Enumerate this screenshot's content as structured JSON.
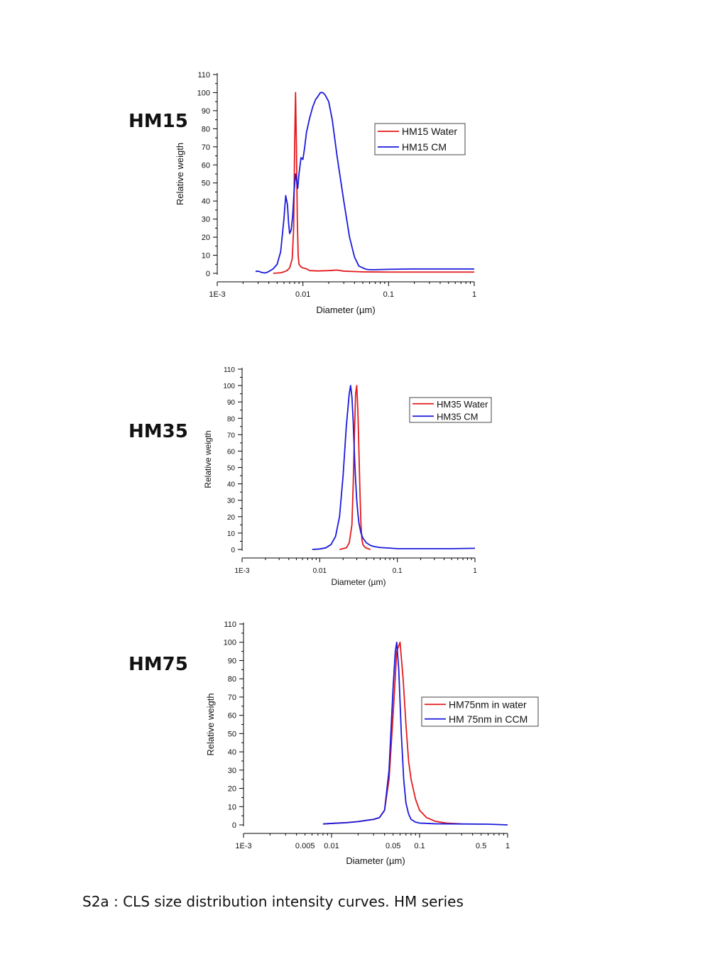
{
  "caption": "S2a : CLS size distribution intensity curves. HM series",
  "panel_labels": [
    "HM15",
    "HM35",
    "HM75"
  ],
  "colors": {
    "water": "#e31a1c",
    "cm": "#1a1adb"
  },
  "chart_data": [
    {
      "type": "line",
      "title": "",
      "xlabel": "Diameter (µm)",
      "ylabel": "Relative weigth",
      "xscale": "log",
      "xlim": [
        0.001,
        1
      ],
      "ylim": [
        0,
        110
      ],
      "xticks": [
        0.001,
        0.01,
        0.1,
        1
      ],
      "xticklabels": [
        "1E-3",
        "0.01",
        "0.1",
        "1"
      ],
      "yticks": [
        0,
        10,
        20,
        30,
        40,
        50,
        60,
        70,
        80,
        90,
        100,
        110
      ],
      "legend": "top-right",
      "series": [
        {
          "name": "HM15 Water",
          "color": "#e31a1c",
          "x": [
            0.0045,
            0.0055,
            0.006,
            0.0065,
            0.007,
            0.0075,
            0.0078,
            0.008,
            0.0082,
            0.0084,
            0.0086,
            0.0088,
            0.009,
            0.0095,
            0.01,
            0.011,
            0.012,
            0.015,
            0.02,
            0.025,
            0.03,
            0.05,
            0.1,
            0.3,
            1
          ],
          "y": [
            0,
            0.3,
            0.8,
            1.5,
            3,
            8,
            25,
            70,
            100,
            70,
            30,
            10,
            5,
            3.5,
            3,
            2.5,
            1.5,
            1.3,
            1.5,
            1.8,
            1.2,
            0.8,
            0.7,
            0.7,
            0.7
          ]
        },
        {
          "name": "HM15 CM",
          "color": "#1a1adb",
          "x": [
            0.0028,
            0.003,
            0.0033,
            0.0036,
            0.0038,
            0.004,
            0.0045,
            0.005,
            0.0055,
            0.006,
            0.0063,
            0.0066,
            0.0068,
            0.007,
            0.0073,
            0.0076,
            0.0079,
            0.0082,
            0.0084,
            0.0087,
            0.009,
            0.0095,
            0.01,
            0.0105,
            0.011,
            0.012,
            0.013,
            0.014,
            0.015,
            0.016,
            0.017,
            0.018,
            0.019,
            0.02,
            0.022,
            0.025,
            0.03,
            0.035,
            0.04,
            0.045,
            0.05,
            0.055,
            0.06,
            0.07,
            0.1,
            0.2,
            0.5,
            1
          ],
          "y": [
            1,
            1.2,
            0.5,
            0.2,
            0.5,
            1,
            2.5,
            5,
            12,
            30,
            43,
            38,
            28,
            22,
            24,
            32,
            46,
            55,
            52,
            47,
            55,
            64,
            63,
            70,
            78,
            86,
            92,
            96,
            98,
            100,
            100,
            99,
            97,
            95,
            85,
            65,
            40,
            20,
            9,
            4,
            3,
            2.2,
            2,
            2,
            2.2,
            2.4,
            2.4,
            2.4
          ]
        }
      ]
    },
    {
      "type": "line",
      "title": "",
      "xlabel": "Diameter (µm)",
      "ylabel": "Relative weigth",
      "xscale": "log",
      "xlim": [
        0.001,
        1
      ],
      "ylim": [
        0,
        110
      ],
      "xticks": [
        0.001,
        0.01,
        0.1,
        1
      ],
      "xticklabels": [
        "1E-3",
        "0.01",
        "0.1",
        "1"
      ],
      "yticks": [
        0,
        10,
        20,
        30,
        40,
        50,
        60,
        70,
        80,
        90,
        100,
        110
      ],
      "legend": "top-right",
      "series": [
        {
          "name": "HM35 Water",
          "color": "#e31a1c",
          "x": [
            0.018,
            0.022,
            0.024,
            0.026,
            0.027,
            0.028,
            0.029,
            0.03,
            0.031,
            0.032,
            0.033,
            0.034,
            0.035,
            0.036,
            0.038,
            0.04,
            0.045
          ],
          "y": [
            0,
            1,
            4,
            15,
            40,
            70,
            95,
            100,
            85,
            60,
            35,
            15,
            6,
            3,
            1.5,
            0.8,
            0
          ]
        },
        {
          "name": "HM35 CM",
          "color": "#1a1adb",
          "x": [
            0.008,
            0.01,
            0.012,
            0.014,
            0.016,
            0.018,
            0.02,
            0.022,
            0.024,
            0.025,
            0.026,
            0.027,
            0.028,
            0.029,
            0.03,
            0.031,
            0.032,
            0.034,
            0.036,
            0.04,
            0.045,
            0.05,
            0.06,
            0.08,
            0.1,
            0.2,
            0.5,
            1
          ],
          "y": [
            0,
            0.3,
            1,
            3,
            8,
            20,
            45,
            75,
            95,
            100,
            93,
            78,
            58,
            42,
            30,
            22,
            16,
            10,
            7,
            4,
            2.5,
            1.8,
            1.2,
            0.8,
            0.5,
            0.5,
            0.5,
            0.7
          ]
        }
      ]
    },
    {
      "type": "line",
      "title": "",
      "xlabel": "Diameter (µm)",
      "ylabel": "Relative weigth",
      "xscale": "log",
      "xlim": [
        0.001,
        1
      ],
      "ylim": [
        0,
        110
      ],
      "xticks": [
        0.001,
        0.005,
        0.01,
        0.05,
        0.1,
        0.5,
        1
      ],
      "xticklabels": [
        "1E-3",
        "0.005",
        "0.01",
        "0.05",
        "0.1",
        "0.5",
        "1"
      ],
      "yticks": [
        0,
        10,
        20,
        30,
        40,
        50,
        60,
        70,
        80,
        90,
        100,
        110
      ],
      "legend": "top-right",
      "series": [
        {
          "name": "HM75nm in water",
          "color": "#e31a1c",
          "x": [
            0.008,
            0.01,
            0.015,
            0.02,
            0.03,
            0.035,
            0.04,
            0.045,
            0.05,
            0.055,
            0.06,
            0.065,
            0.07,
            0.075,
            0.08,
            0.09,
            0.1,
            0.12,
            0.15,
            0.2,
            0.3
          ],
          "y": [
            0.5,
            0.8,
            1.3,
            1.8,
            3,
            4,
            8,
            25,
            60,
            95,
            100,
            80,
            55,
            35,
            25,
            14,
            8,
            4,
            2,
            1,
            0.5
          ]
        },
        {
          "name": "HM 75nm in CCM",
          "color": "#1a1adb",
          "x": [
            0.008,
            0.01,
            0.015,
            0.02,
            0.025,
            0.03,
            0.035,
            0.04,
            0.045,
            0.05,
            0.053,
            0.055,
            0.058,
            0.062,
            0.066,
            0.07,
            0.075,
            0.08,
            0.09,
            0.1,
            0.15,
            0.3,
            0.6,
            1
          ],
          "y": [
            0.5,
            0.8,
            1.2,
            1.8,
            2.5,
            3,
            4,
            8,
            30,
            75,
            95,
            100,
            85,
            50,
            25,
            12,
            6,
            3,
            1.5,
            1,
            0.6,
            0.5,
            0.4,
            0
          ]
        }
      ]
    }
  ]
}
